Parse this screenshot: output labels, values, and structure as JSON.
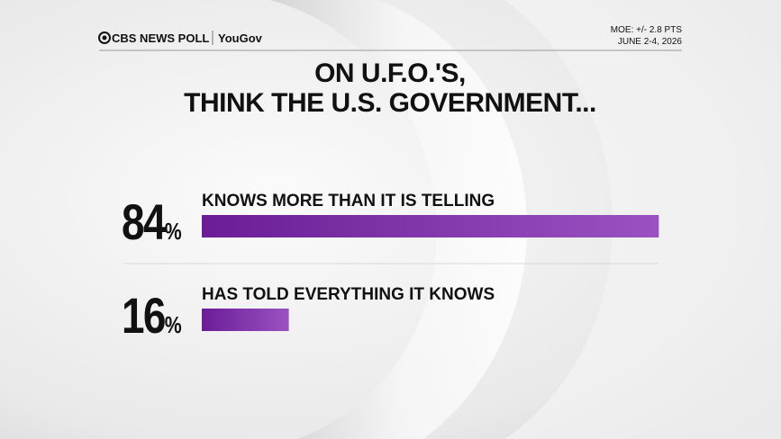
{
  "header": {
    "brand": "CBS NEWS POLL",
    "partner": "YouGov",
    "moe": "MOE: +/- 2.8 PTS",
    "dates": "JUNE 2-4, 2026"
  },
  "chart_data": {
    "type": "hbar",
    "title": [
      "ON U.F.O.'S,",
      "THINK THE U.S. GOVERNMENT..."
    ],
    "categories": [
      "KNOWS MORE THAN IT IS TELLING",
      "HAS TOLD EVERYTHING IT KNOWS"
    ],
    "values": [
      84,
      16
    ],
    "value_labels": [
      "84%",
      "16%"
    ],
    "color": "#8a3fb5"
  }
}
